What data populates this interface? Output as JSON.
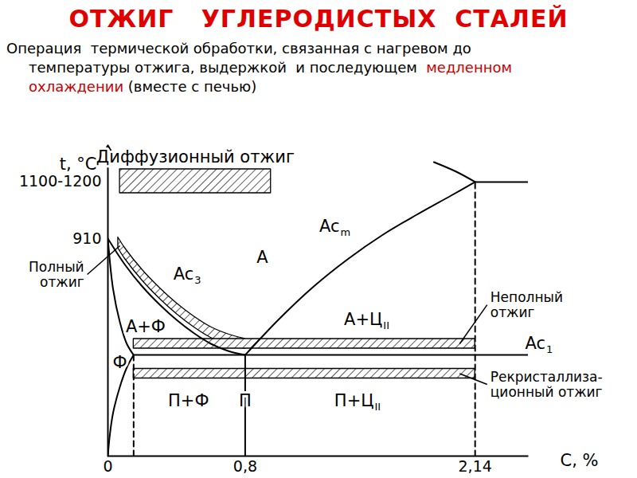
{
  "chart_data": {
    "type": "phase_diagram",
    "title": "ОТЖИГ   УГЛЕРОДИСТЫХ  СТАЛЕЙ",
    "title_color": "#e00000",
    "subtitle": [
      [
        "Операция  термической обработки, связанная с нагревом до"
      ],
      [
        "температуры отжига, выдержкой  и последующем  ",
        {
          "text": "медленном",
          "color": "#cc0000"
        }
      ],
      [
        {
          "text": "охлаждении",
          "color": "#cc0000"
        },
        " (вместе с печью)"
      ]
    ],
    "x_label": "C, %",
    "y_label": "t, °C",
    "xlim": [
      0,
      2.45
    ],
    "ylim": [
      0,
      1300
    ],
    "xticks": [
      0,
      {
        "value": 0.8,
        "label": "0,8"
      },
      {
        "value": 2.14,
        "label": "2,14"
      }
    ],
    "yticks": [
      910,
      {
        "value": 1150,
        "label": "1100-1200"
      }
    ],
    "color": "#000000",
    "lines": [
      {
        "x": [
          0,
          0.1,
          0.2,
          0.3,
          0.4,
          0.5,
          0.6,
          0.7,
          0.8
        ],
        "y": [
          910,
          800,
          710,
          635,
          570,
          515,
          470,
          440,
          423
        ],
        "line_style": "solid"
      },
      {
        "x": [
          0,
          0.03,
          0.07,
          0.11,
          0.15
        ],
        "y": [
          910,
          700,
          560,
          470,
          423
        ],
        "line_style": "solid"
      },
      {
        "x": [
          0,
          0.01,
          0.03,
          0.07,
          0.11,
          0.15
        ],
        "y": [
          0,
          80,
          180,
          290,
          370,
          423
        ],
        "line_style": "solid"
      },
      {
        "x": [
          0.8,
          1.0,
          1.2,
          1.4,
          1.6,
          1.8,
          2.0,
          2.14
        ],
        "y": [
          423,
          575,
          710,
          825,
          925,
          1010,
          1090,
          1147
        ],
        "line_style": "solid"
      },
      {
        "x": [
          1.9,
          2.03,
          2.14
        ],
        "y": [
          1230,
          1190,
          1147
        ],
        "line_style": "solid"
      },
      {
        "x": [
          2.14,
          2.45
        ],
        "y": [
          1147,
          1147
        ],
        "line_style": "solid"
      },
      {
        "x": [
          0.15,
          2.45
        ],
        "y": [
          423,
          423
        ],
        "line_style": "solid"
      },
      {
        "x": [
          0.15,
          0.15
        ],
        "y": [
          0,
          423
        ],
        "line_style": "dashed"
      },
      {
        "x": [
          0.8,
          0.8
        ],
        "y": [
          0,
          423
        ],
        "line_style": "solid"
      },
      {
        "x": [
          2.14,
          2.14
        ],
        "y": [
          0,
          1147
        ],
        "line_style": "dashed"
      }
    ],
    "bands": [
      {
        "x": [
          0.06,
          0.1,
          0.2,
          0.3,
          0.4,
          0.5,
          0.6,
          0.7,
          0.8
        ],
        "lower": [
          870,
          825,
          735,
          660,
          595,
          540,
          495,
          465,
          450
        ],
        "upper": [
          915,
          870,
          780,
          705,
          640,
          585,
          540,
          510,
          490
        ]
      },
      {
        "x": [
          0.15,
          2.14
        ],
        "lower": [
          450,
          450
        ],
        "upper": [
          490,
          490
        ]
      },
      {
        "x": [
          0.15,
          2.14
        ],
        "lower": [
          325,
          325
        ],
        "upper": [
          365,
          365
        ]
      },
      {
        "x": [
          0.07,
          0.95
        ],
        "lower": [
          1100,
          1100
        ],
        "upper": [
          1200,
          1200
        ]
      }
    ],
    "labels": [
      {
        "text": "Диффузионный отжиг",
        "x": 0.51,
        "y": 1250
      },
      {
        "text": "А",
        "x": 0.9,
        "y": 830
      },
      {
        "text": "А+Ф",
        "x": 0.22,
        "y": 540
      },
      {
        "text": "Ф",
        "x": 0.07,
        "y": 390
      },
      {
        "text": "П+Ф",
        "x": 0.47,
        "y": 230
      },
      {
        "text": "П",
        "x": 0.8,
        "y": 230
      },
      {
        "text": "А+Ц",
        "sub": "II",
        "x": 1.6,
        "y": 570
      },
      {
        "text": "П+Ц",
        "sub": "II",
        "x": 1.55,
        "y": 230
      },
      {
        "text": "Ac",
        "sub": "3",
        "x": 0.5,
        "y": 760
      },
      {
        "text": "Ac",
        "sub": "m",
        "x": 1.35,
        "y": 960
      },
      {
        "text": "Ac",
        "sub": "1",
        "x": 2.55,
        "y": 470
      }
    ],
    "callouts": [
      {
        "text": "Полный\nотжиг",
        "x": -0.12,
        "y": 760,
        "to": [
          0.07,
          880
        ]
      },
      {
        "text": "Неполный\nотжиг",
        "x": 2.21,
        "y": 633,
        "to": [
          2.05,
          470
        ]
      },
      {
        "text": "Рекристаллиза-\nционный отжиг",
        "x": 2.21,
        "y": 300,
        "to": [
          2.05,
          345
        ]
      }
    ]
  }
}
